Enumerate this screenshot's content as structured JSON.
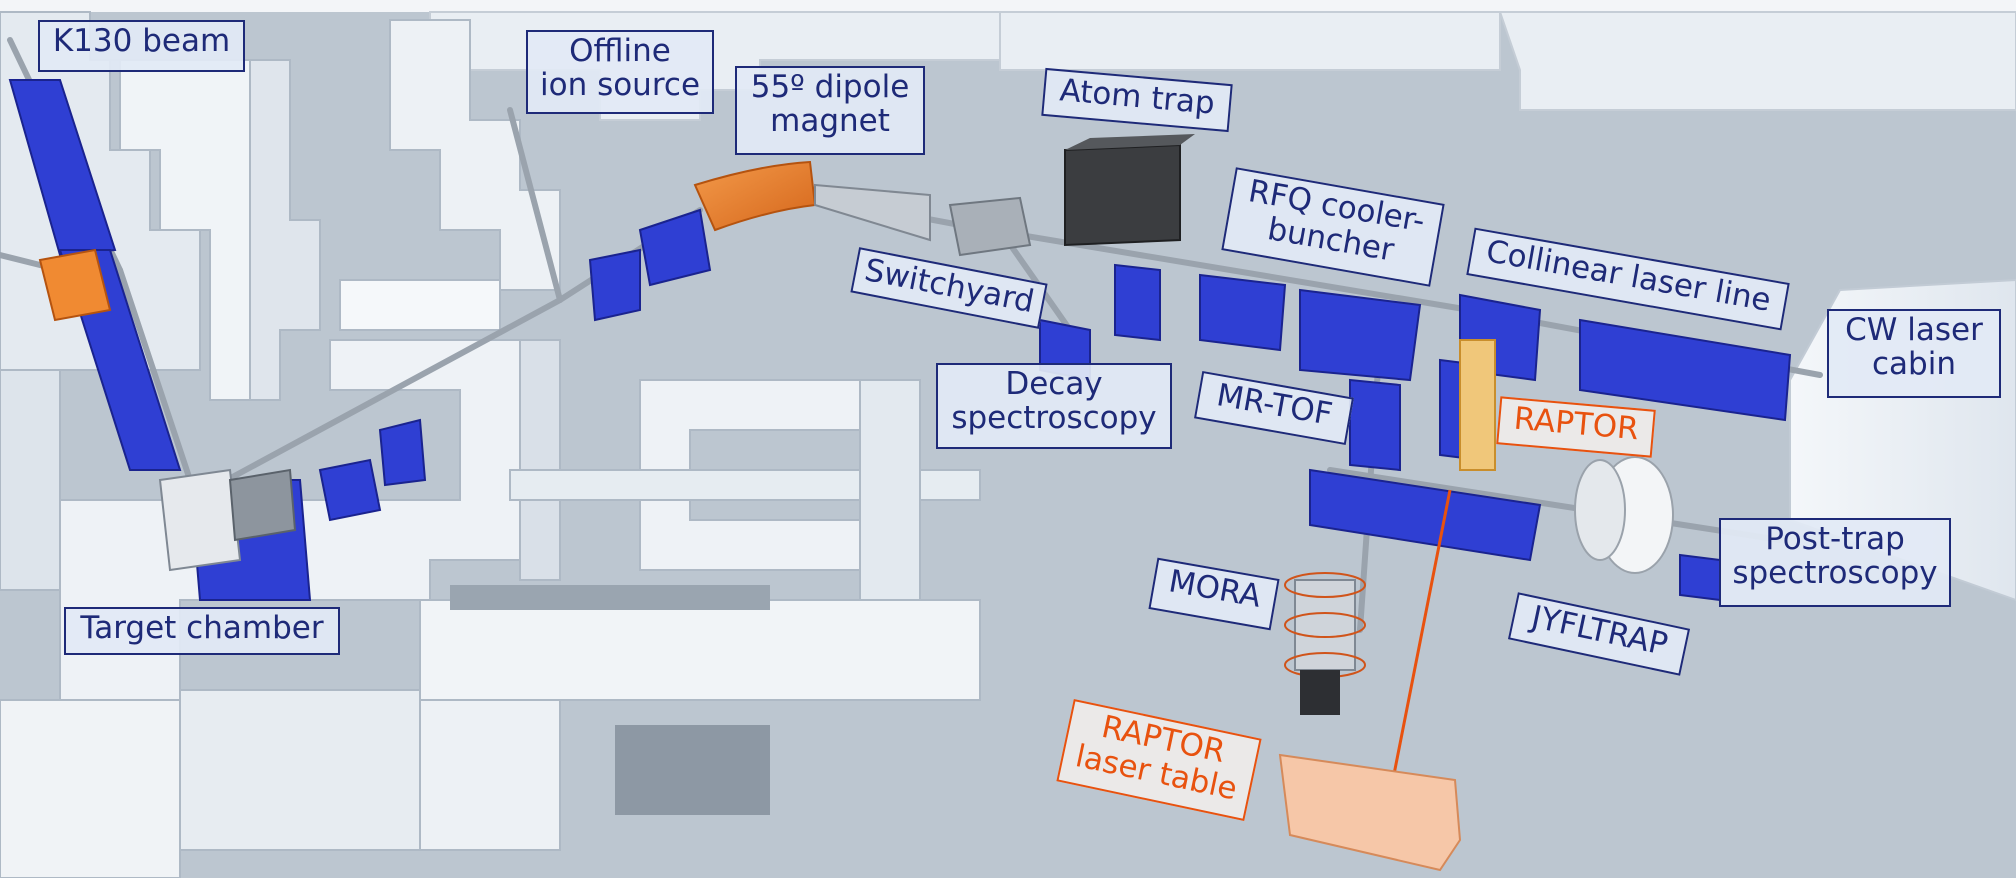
{
  "colors": {
    "label_navy": "#1e2a78",
    "raptor_orange": "#e8520f",
    "stand_blue": "#2f3fd3",
    "wall_white": "#eef2f6",
    "floor_grey": "#b9c3cd"
  },
  "labels": {
    "k130_beam": "K130 beam",
    "offline_ion_source_line1": "Offline",
    "offline_ion_source_line2": "ion source",
    "dipole_magnet_line1": "55º dipole",
    "dipole_magnet_line2": "magnet",
    "atom_trap": "Atom trap",
    "rfq_line1": "RFQ cooler-",
    "rfq_line2": "buncher",
    "collinear_laser_line": "Collinear laser line",
    "cw_laser_cabin_line1": "CW laser",
    "cw_laser_cabin_line2": "cabin",
    "switchyard": "Switchyard",
    "decay_spectroscopy_line1": "Decay",
    "decay_spectroscopy_line2": "spectroscopy",
    "mr_tof": "MR-TOF",
    "raptor": "RAPTOR",
    "post_trap_line1": "Post-trap",
    "post_trap_line2": "spectroscopy",
    "mora": "MORA",
    "jyfltrap": "JYFLTRAP",
    "raptor_laser_table_line1": "RAPTOR",
    "raptor_laser_table_line2": "laser table",
    "target_chamber": "Target chamber"
  }
}
